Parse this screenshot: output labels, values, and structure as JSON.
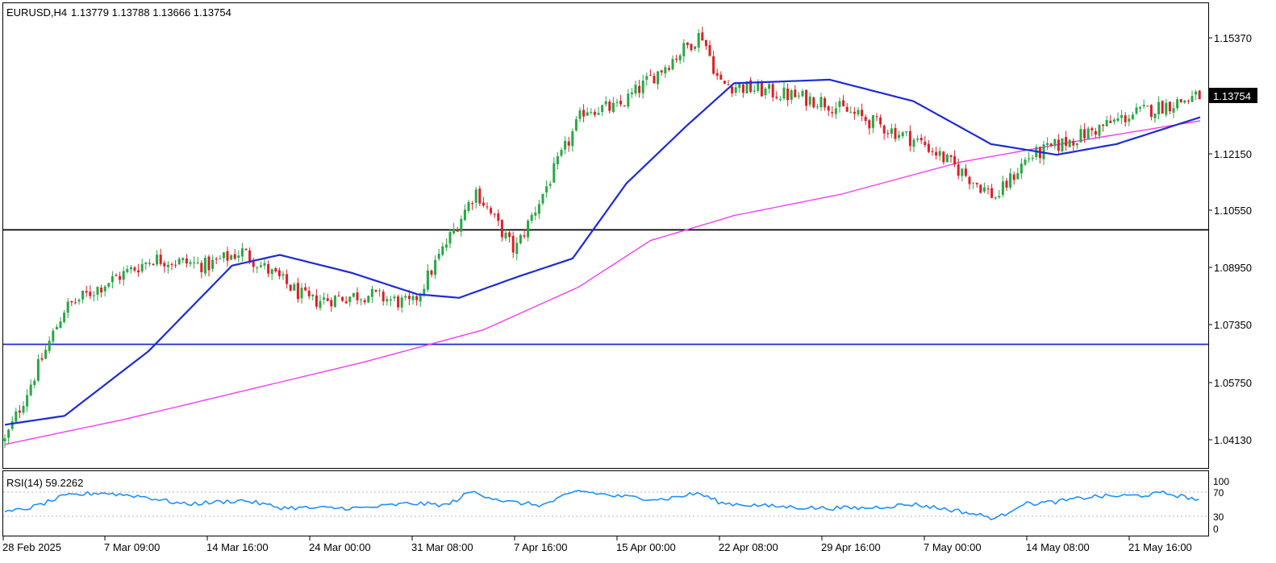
{
  "header": {
    "symbol_tf": "EURUSD,H4",
    "ohlc": "1.13779 1.13788 1.13666 1.13754"
  },
  "price_axis": {
    "ticks": [
      "1.15370",
      "1.13754",
      "1.12150",
      "1.10550",
      "1.08950",
      "1.07350",
      "1.05750",
      "1.04130"
    ],
    "current_price": "1.13754"
  },
  "time_axis": {
    "ticks": [
      "28 Feb 2025",
      "7 Mar 09:00",
      "14 Mar 16:00",
      "24 Mar 00:00",
      "31 Mar 08:00",
      "7 Apr 16:00",
      "15 Apr 00:00",
      "22 Apr 08:00",
      "29 Apr 16:00",
      "7 May 00:00",
      "14 May 08:00",
      "21 May 16:00"
    ]
  },
  "rsi": {
    "label": "RSI(14) 59.2262",
    "ticks": [
      "100",
      "70",
      "30",
      "0"
    ]
  },
  "colors": {
    "bull": "#27a844",
    "bear": "#dd1f26",
    "ma_fast": "#1d2bd6",
    "ma_slow": "#f23df2",
    "rsi_line": "#1e90ff",
    "level_black": "#000000",
    "level_blue": "#1d2bd6",
    "price_tag_bg": "#000000",
    "price_tag_fg": "#ffffff"
  },
  "chart_data": {
    "type": "candlestick",
    "title": "EURUSD,H4",
    "ylim": [
      1.036,
      1.16
    ],
    "horizontal_levels": [
      1.1,
      1.068
    ],
    "last_price": 1.13754,
    "price_path_keypoints": [
      [
        "28 Feb 2025",
        1.04
      ],
      [
        "5 Mar",
        1.078
      ],
      [
        "7 Mar 09:00",
        1.085
      ],
      [
        "11 Mar",
        1.092
      ],
      [
        "14 Mar 16:00",
        1.09
      ],
      [
        "18 Mar",
        1.094
      ],
      [
        "24 Mar 00:00",
        1.08
      ],
      [
        "27 Mar",
        1.082
      ],
      [
        "31 Mar 08:00",
        1.079
      ],
      [
        "3 Apr",
        1.111
      ],
      [
        "7 Apr 16:00",
        1.094
      ],
      [
        "11 Apr",
        1.134
      ],
      [
        "15 Apr 00:00",
        1.134
      ],
      [
        "21 Apr",
        1.155
      ],
      [
        "22 Apr 08:00",
        1.141
      ],
      [
        "29 Apr 16:00",
        1.136
      ],
      [
        "7 May 00:00",
        1.124
      ],
      [
        "12 May",
        1.109
      ],
      [
        "14 May 08:00",
        1.12
      ],
      [
        "21 May 16:00",
        1.132
      ],
      [
        "23 May",
        1.1375
      ]
    ],
    "ma_fast_keypoints": [
      [
        0.0,
        1.0455
      ],
      [
        0.05,
        1.048
      ],
      [
        0.12,
        1.066
      ],
      [
        0.19,
        1.09
      ],
      [
        0.23,
        1.093
      ],
      [
        0.29,
        1.088
      ],
      [
        0.345,
        1.082
      ],
      [
        0.38,
        1.081
      ],
      [
        0.43,
        1.087
      ],
      [
        0.475,
        1.092
      ],
      [
        0.52,
        1.113
      ],
      [
        0.57,
        1.129
      ],
      [
        0.61,
        1.141
      ],
      [
        0.69,
        1.142
      ],
      [
        0.76,
        1.136
      ],
      [
        0.825,
        1.124
      ],
      [
        0.88,
        1.121
      ],
      [
        0.93,
        1.124
      ],
      [
        1.0,
        1.1315
      ]
    ],
    "ma_slow_keypoints": [
      [
        0.0,
        1.04
      ],
      [
        0.1,
        1.047
      ],
      [
        0.2,
        1.055
      ],
      [
        0.3,
        1.063
      ],
      [
        0.4,
        1.072
      ],
      [
        0.48,
        1.084
      ],
      [
        0.54,
        1.097
      ],
      [
        0.61,
        1.104
      ],
      [
        0.7,
        1.11
      ],
      [
        0.8,
        1.119
      ],
      [
        0.9,
        1.125
      ],
      [
        1.0,
        1.1305
      ]
    ],
    "rsi_keypoints": [
      [
        0.0,
        32
      ],
      [
        0.025,
        45
      ],
      [
        0.05,
        67
      ],
      [
        0.08,
        74
      ],
      [
        0.115,
        66
      ],
      [
        0.15,
        50
      ],
      [
        0.2,
        58
      ],
      [
        0.23,
        43
      ],
      [
        0.26,
        42
      ],
      [
        0.3,
        42
      ],
      [
        0.34,
        52
      ],
      [
        0.37,
        48
      ],
      [
        0.39,
        76
      ],
      [
        0.42,
        55
      ],
      [
        0.45,
        48
      ],
      [
        0.48,
        78
      ],
      [
        0.51,
        67
      ],
      [
        0.55,
        60
      ],
      [
        0.58,
        73
      ],
      [
        0.6,
        52
      ],
      [
        0.64,
        46
      ],
      [
        0.68,
        42
      ],
      [
        0.72,
        42
      ],
      [
        0.76,
        50
      ],
      [
        0.8,
        35
      ],
      [
        0.83,
        20
      ],
      [
        0.85,
        50
      ],
      [
        0.88,
        55
      ],
      [
        0.91,
        66
      ],
      [
        0.95,
        68
      ],
      [
        0.97,
        73
      ],
      [
        1.0,
        59
      ]
    ]
  }
}
